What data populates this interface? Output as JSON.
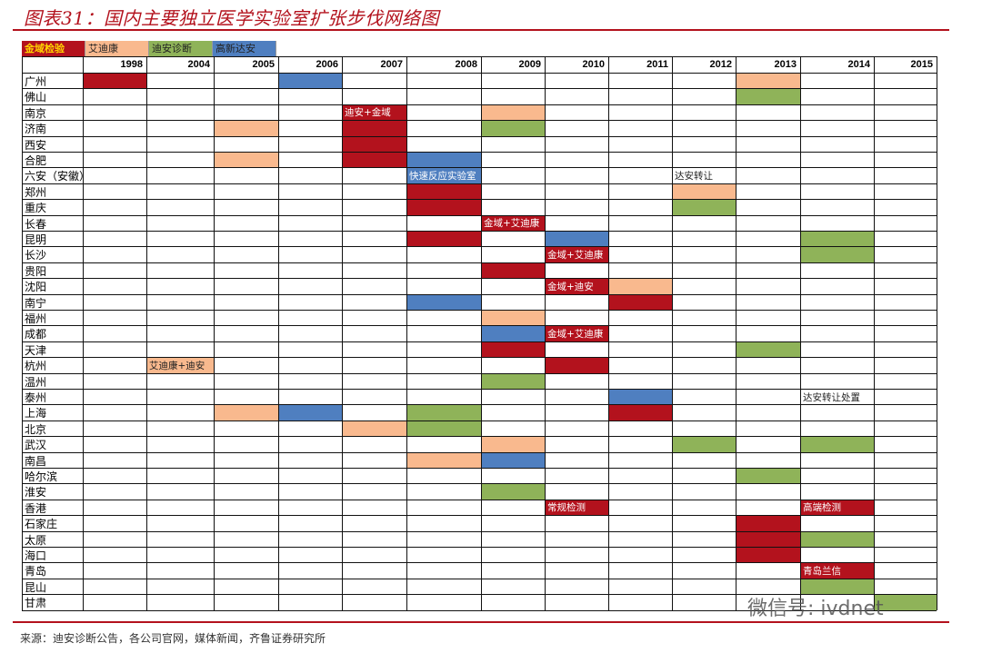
{
  "title": "图表31：国内主要独立医学实验室扩张步伐网络图",
  "source": "来源：迪安诊断公告，各公司官网，媒体新闻，齐鲁证券研究所",
  "watermark": "微信号: ivdnet",
  "colors": {
    "金域检验": "#b3121d",
    "艾迪康": "#f9b98e",
    "迪安诊断": "#8fb359",
    "高新达安": "#4f7fc0"
  },
  "chart_data": {
    "type": "table",
    "legend": [
      "金域检验",
      "艾迪康",
      "迪安诊断",
      "高新达安"
    ],
    "years": [
      "1998",
      "2004",
      "2005",
      "2006",
      "2007",
      "2008",
      "2009",
      "2010",
      "2011",
      "2012",
      "2013",
      "2014",
      "2015"
    ],
    "cities": [
      "广州",
      "佛山",
      "南京",
      "济南",
      "西安",
      "合肥",
      "六安（安徽）",
      "郑州",
      "重庆",
      "长春",
      "昆明",
      "长沙",
      "贵阳",
      "沈阳",
      "南宁",
      "福州",
      "成都",
      "天津",
      "杭州",
      "温州",
      "泰州",
      "上海",
      "北京",
      "武汉",
      "南昌",
      "哈尔滨",
      "淮安",
      "香港",
      "石家庄",
      "太原",
      "海口",
      "青岛",
      "昆山",
      "甘肃"
    ],
    "entries": [
      {
        "city": "广州",
        "year": "1998",
        "company": "金域检验"
      },
      {
        "city": "广州",
        "year": "2006",
        "company": "高新达安"
      },
      {
        "city": "广州",
        "year": "2013",
        "company": "艾迪康"
      },
      {
        "city": "佛山",
        "year": "2013",
        "company": "迪安诊断"
      },
      {
        "city": "南京",
        "year": "2007",
        "company": "金域检验",
        "label": "迪安+金域"
      },
      {
        "city": "南京",
        "year": "2009",
        "company": "艾迪康"
      },
      {
        "city": "济南",
        "year": "2005",
        "company": "艾迪康"
      },
      {
        "city": "济南",
        "year": "2007",
        "company": "金域检验"
      },
      {
        "city": "济南",
        "year": "2009",
        "company": "迪安诊断"
      },
      {
        "city": "西安",
        "year": "2007",
        "company": "金域检验"
      },
      {
        "city": "合肥",
        "year": "2005",
        "company": "艾迪康"
      },
      {
        "city": "合肥",
        "year": "2007",
        "company": "金域检验"
      },
      {
        "city": "合肥",
        "year": "2008",
        "company": "高新达安"
      },
      {
        "city": "六安（安徽）",
        "year": "2008",
        "company": "高新达安",
        "label": "快速反应实验室"
      },
      {
        "city": "六安（安徽）",
        "year": "2012",
        "company": null,
        "label": "达安转让"
      },
      {
        "city": "郑州",
        "year": "2008",
        "company": "金域检验"
      },
      {
        "city": "郑州",
        "year": "2012",
        "company": "艾迪康"
      },
      {
        "city": "重庆",
        "year": "2008",
        "company": "金域检验"
      },
      {
        "city": "重庆",
        "year": "2012",
        "company": "迪安诊断"
      },
      {
        "city": "长春",
        "year": "2009",
        "company": "金域检验",
        "label": "金域+艾迪康"
      },
      {
        "city": "昆明",
        "year": "2008",
        "company": "金域检验"
      },
      {
        "city": "昆明",
        "year": "2010",
        "company": "高新达安"
      },
      {
        "city": "昆明",
        "year": "2014",
        "company": "迪安诊断"
      },
      {
        "city": "长沙",
        "year": "2010",
        "company": "金域检验",
        "label": "金域+艾迪康"
      },
      {
        "city": "长沙",
        "year": "2014",
        "company": "迪安诊断"
      },
      {
        "city": "贵阳",
        "year": "2009",
        "company": "金域检验"
      },
      {
        "city": "沈阳",
        "year": "2010",
        "company": "金域检验",
        "label": "金域+迪安"
      },
      {
        "city": "沈阳",
        "year": "2011",
        "company": "艾迪康"
      },
      {
        "city": "南宁",
        "year": "2008",
        "company": "高新达安"
      },
      {
        "city": "南宁",
        "year": "2011",
        "company": "金域检验"
      },
      {
        "city": "福州",
        "year": "2009",
        "company": "艾迪康"
      },
      {
        "city": "成都",
        "year": "2009",
        "company": "高新达安"
      },
      {
        "city": "成都",
        "year": "2010",
        "company": "金域检验",
        "label": "金域+艾迪康"
      },
      {
        "city": "天津",
        "year": "2009",
        "company": "金域检验"
      },
      {
        "city": "天津",
        "year": "2013",
        "company": "迪安诊断"
      },
      {
        "city": "杭州",
        "year": "2004",
        "company": "艾迪康",
        "label": "艾迪康+迪安"
      },
      {
        "city": "杭州",
        "year": "2010",
        "company": "金域检验"
      },
      {
        "city": "温州",
        "year": "2009",
        "company": "迪安诊断"
      },
      {
        "city": "泰州",
        "year": "2011",
        "company": "高新达安"
      },
      {
        "city": "泰州",
        "year": "2014",
        "company": null,
        "label": "达安转让处置"
      },
      {
        "city": "上海",
        "year": "2005",
        "company": "艾迪康"
      },
      {
        "city": "上海",
        "year": "2006",
        "company": "高新达安"
      },
      {
        "city": "上海",
        "year": "2008",
        "company": "迪安诊断"
      },
      {
        "city": "上海",
        "year": "2011",
        "company": "金域检验"
      },
      {
        "city": "北京",
        "year": "2007",
        "company": "艾迪康"
      },
      {
        "city": "北京",
        "year": "2008",
        "company": "迪安诊断"
      },
      {
        "city": "武汉",
        "year": "2009",
        "company": "艾迪康"
      },
      {
        "city": "武汉",
        "year": "2012",
        "company": "迪安诊断"
      },
      {
        "city": "武汉",
        "year": "2014",
        "company": "迪安诊断"
      },
      {
        "city": "南昌",
        "year": "2008",
        "company": "艾迪康"
      },
      {
        "city": "南昌",
        "year": "2009",
        "company": "高新达安"
      },
      {
        "city": "哈尔滨",
        "year": "2013",
        "company": "迪安诊断"
      },
      {
        "city": "淮安",
        "year": "2009",
        "company": "迪安诊断"
      },
      {
        "city": "香港",
        "year": "2010",
        "company": "金域检验",
        "label": "常规检测"
      },
      {
        "city": "香港",
        "year": "2014",
        "company": "金域检验",
        "label": "高端检测"
      },
      {
        "city": "石家庄",
        "year": "2013",
        "company": "金域检验"
      },
      {
        "city": "太原",
        "year": "2013",
        "company": "金域检验"
      },
      {
        "city": "太原",
        "year": "2014",
        "company": "迪安诊断"
      },
      {
        "city": "海口",
        "year": "2013",
        "company": "金域检验"
      },
      {
        "city": "青岛",
        "year": "2014",
        "company": "金域检验",
        "label": "青岛兰信"
      },
      {
        "city": "昆山",
        "year": "2014",
        "company": "迪安诊断"
      },
      {
        "city": "甘肃",
        "year": "2015",
        "company": "迪安诊断"
      }
    ]
  }
}
